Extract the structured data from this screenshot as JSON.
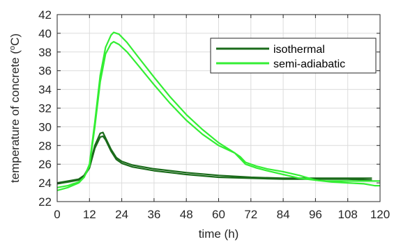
{
  "chart_data": {
    "type": "line",
    "xlabel": "time (h)",
    "ylabel_main": "temperature of concrete (",
    "ylabel_sup": "o",
    "ylabel_tail": "C)",
    "xlim": [
      0,
      120
    ],
    "ylim": [
      22,
      42
    ],
    "xticks": [
      0,
      12,
      24,
      36,
      48,
      60,
      72,
      84,
      96,
      108,
      120
    ],
    "yticks": [
      22,
      24,
      26,
      28,
      30,
      32,
      34,
      36,
      38,
      40,
      42
    ],
    "grid": true,
    "legend_position": "top-right",
    "series": [
      {
        "name": "isothermal",
        "color": "#1a6b1a",
        "lines": [
          [
            [
              0,
              24.0
            ],
            [
              4,
              24.2
            ],
            [
              8,
              24.4
            ],
            [
              10,
              24.8
            ],
            [
              12,
              25.8
            ],
            [
              14,
              28.0
            ],
            [
              16,
              29.3
            ],
            [
              17,
              29.4
            ],
            [
              18,
              28.8
            ],
            [
              20,
              27.6
            ],
            [
              22,
              26.7
            ],
            [
              24,
              26.3
            ],
            [
              28,
              25.9
            ],
            [
              36,
              25.5
            ],
            [
              48,
              25.1
            ],
            [
              60,
              24.8
            ],
            [
              72,
              24.6
            ],
            [
              84,
              24.5
            ],
            [
              96,
              24.5
            ],
            [
              108,
              24.5
            ],
            [
              117,
              24.5
            ]
          ],
          [
            [
              0,
              23.9
            ],
            [
              4,
              24.1
            ],
            [
              8,
              24.3
            ],
            [
              10,
              24.7
            ],
            [
              12,
              25.6
            ],
            [
              14,
              27.7
            ],
            [
              16,
              28.9
            ],
            [
              17,
              29.0
            ],
            [
              18,
              28.6
            ],
            [
              20,
              27.4
            ],
            [
              22,
              26.5
            ],
            [
              24,
              26.1
            ],
            [
              28,
              25.7
            ],
            [
              36,
              25.3
            ],
            [
              48,
              24.9
            ],
            [
              60,
              24.6
            ],
            [
              72,
              24.5
            ],
            [
              84,
              24.4
            ],
            [
              96,
              24.4
            ],
            [
              108,
              24.4
            ],
            [
              117,
              24.3
            ]
          ]
        ]
      },
      {
        "name": "semi-adiabatic",
        "color": "#33ee33",
        "lines": [
          [
            [
              0,
              23.2
            ],
            [
              4,
              23.5
            ],
            [
              8,
              24.0
            ],
            [
              10,
              24.6
            ],
            [
              12,
              26.0
            ],
            [
              14,
              30.5
            ],
            [
              16,
              35.5
            ],
            [
              18,
              38.5
            ],
            [
              20,
              39.8
            ],
            [
              21,
              40.1
            ],
            [
              23,
              39.9
            ],
            [
              26,
              39.0
            ],
            [
              30,
              37.5
            ],
            [
              36,
              35.3
            ],
            [
              42,
              33.2
            ],
            [
              48,
              31.3
            ],
            [
              54,
              29.7
            ],
            [
              60,
              28.3
            ],
            [
              66,
              27.2
            ],
            [
              68,
              26.8
            ],
            [
              70,
              26.2
            ],
            [
              74,
              25.8
            ],
            [
              78,
              25.5
            ],
            [
              84,
              25.2
            ],
            [
              90,
              24.8
            ],
            [
              96,
              24.3
            ],
            [
              102,
              24.1
            ],
            [
              108,
              24.0
            ],
            [
              114,
              23.9
            ],
            [
              118,
              23.7
            ],
            [
              120,
              23.7
            ]
          ],
          [
            [
              0,
              23.5
            ],
            [
              4,
              23.7
            ],
            [
              8,
              24.1
            ],
            [
              10,
              24.6
            ],
            [
              12,
              25.8
            ],
            [
              14,
              30.0
            ],
            [
              16,
              34.8
            ],
            [
              18,
              37.8
            ],
            [
              20,
              38.9
            ],
            [
              21,
              39.1
            ],
            [
              23,
              38.8
            ],
            [
              26,
              38.0
            ],
            [
              30,
              36.6
            ],
            [
              36,
              34.5
            ],
            [
              42,
              32.5
            ],
            [
              48,
              30.7
            ],
            [
              54,
              29.2
            ],
            [
              60,
              28.0
            ],
            [
              66,
              27.2
            ],
            [
              70,
              26.0
            ],
            [
              74,
              25.6
            ],
            [
              78,
              25.3
            ],
            [
              84,
              24.9
            ],
            [
              90,
              24.5
            ],
            [
              96,
              24.3
            ],
            [
              100,
              24.2
            ],
            [
              108,
              24.2
            ],
            [
              114,
              24.2
            ],
            [
              118,
              24.2
            ],
            [
              120,
              24.2
            ]
          ]
        ]
      }
    ]
  }
}
